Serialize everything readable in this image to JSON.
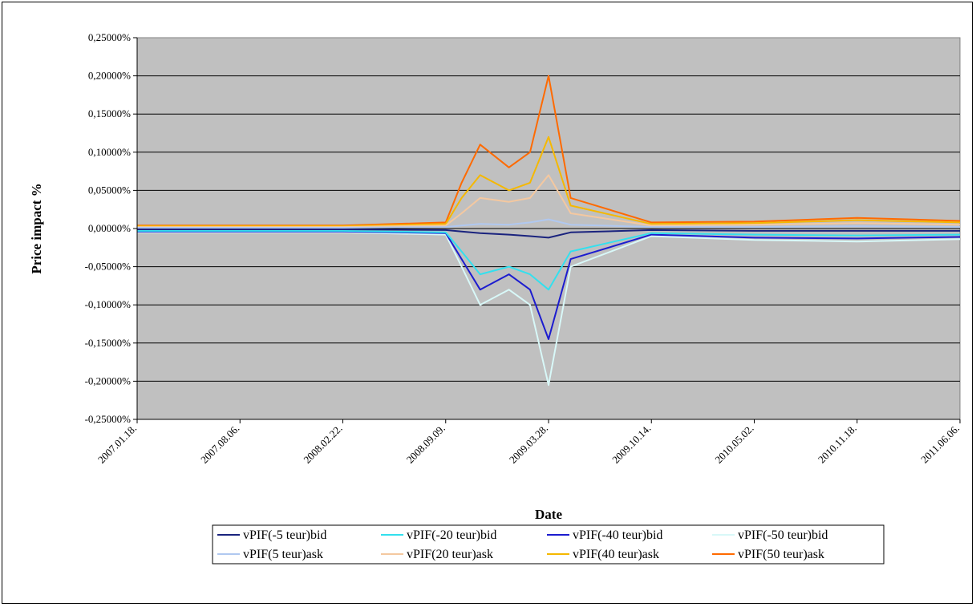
{
  "chart_data": {
    "type": "line",
    "title": "",
    "xlabel": "Date",
    "ylabel": "Price impact %",
    "ylim": [
      -0.25,
      0.25
    ],
    "y_tick_values": [
      0.25,
      0.2,
      0.15,
      0.1,
      0.05,
      0,
      -0.05,
      -0.1,
      -0.15,
      -0.2,
      -0.25
    ],
    "y_tick_labels": [
      "0,25000%",
      "0,20000%",
      "0,15000%",
      "0,10000%",
      "0,05000%",
      "0,00000%",
      "-0,05000%",
      "-0,10000%",
      "-0,15000%",
      "-0,20000%",
      "-0,25000%"
    ],
    "x_tick_labels": [
      "2007.01.18.",
      "2007.08.06.",
      "2008.02.22.",
      "2008.09.09.",
      "2009.03.28.",
      "2009.10.14.",
      "2010.05.02.",
      "2010.11.18.",
      "2011.06.06."
    ],
    "x_range": [
      "2007.01.18.",
      "2011.06.06."
    ],
    "grid": true,
    "plot_background": "#c0c0c0",
    "legend_position": "bottom",
    "x": [
      "2007.01.18.",
      "2007.08.06.",
      "2008.02.22.",
      "2008.09.09.",
      "2008.10.10.",
      "2008.11.15.",
      "2009.01.10.",
      "2009.02.20.",
      "2009.03.28.",
      "2009.05.10.",
      "2009.10.14.",
      "2010.05.02.",
      "2010.11.18.",
      "2011.06.06."
    ],
    "series": [
      {
        "name": "vPIF(-5 teur)bid",
        "color": "#1a237e",
        "values": [
          -0.001,
          -0.001,
          -0.001,
          -0.002,
          -0.004,
          -0.006,
          -0.008,
          -0.01,
          -0.012,
          -0.005,
          -0.002,
          -0.003,
          -0.003,
          -0.003
        ]
      },
      {
        "name": "vPIF(-20 teur)bid",
        "color": "#33e0ee",
        "values": [
          -0.003,
          -0.003,
          -0.003,
          -0.005,
          -0.03,
          -0.06,
          -0.05,
          -0.06,
          -0.08,
          -0.03,
          -0.006,
          -0.008,
          -0.009,
          -0.008
        ]
      },
      {
        "name": "vPIF(-40 teur)bid",
        "color": "#1c1ccf",
        "values": [
          -0.004,
          -0.004,
          -0.004,
          -0.006,
          -0.04,
          -0.08,
          -0.06,
          -0.08,
          -0.145,
          -0.04,
          -0.008,
          -0.012,
          -0.013,
          -0.011
        ]
      },
      {
        "name": "vPIF(-50 teur)bid",
        "color": "#d8f8f8",
        "values": [
          -0.005,
          -0.005,
          -0.005,
          -0.008,
          -0.05,
          -0.1,
          -0.08,
          -0.1,
          -0.205,
          -0.05,
          -0.01,
          -0.015,
          -0.017,
          -0.014
        ]
      },
      {
        "name": "vPIF(5 teur)ask",
        "color": "#b0c8f0",
        "values": [
          0.001,
          0.001,
          0.001,
          0.002,
          0.004,
          0.006,
          0.005,
          0.008,
          0.012,
          0.005,
          0.002,
          0.002,
          0.003,
          0.002
        ]
      },
      {
        "name": "vPIF(20 teur)ask",
        "color": "#f4c8a0",
        "values": [
          0.002,
          0.002,
          0.002,
          0.004,
          0.02,
          0.04,
          0.035,
          0.04,
          0.07,
          0.02,
          0.004,
          0.005,
          0.007,
          0.005
        ]
      },
      {
        "name": "vPIF(40 teur)ask",
        "color": "#f5b800",
        "values": [
          0.003,
          0.003,
          0.003,
          0.006,
          0.04,
          0.07,
          0.05,
          0.06,
          0.12,
          0.03,
          0.006,
          0.007,
          0.011,
          0.008
        ]
      },
      {
        "name": "vPIF(50 teur)ask",
        "color": "#ff6a00",
        "values": [
          0.004,
          0.004,
          0.004,
          0.008,
          0.06,
          0.11,
          0.08,
          0.1,
          0.2,
          0.04,
          0.008,
          0.009,
          0.014,
          0.01
        ]
      }
    ]
  }
}
